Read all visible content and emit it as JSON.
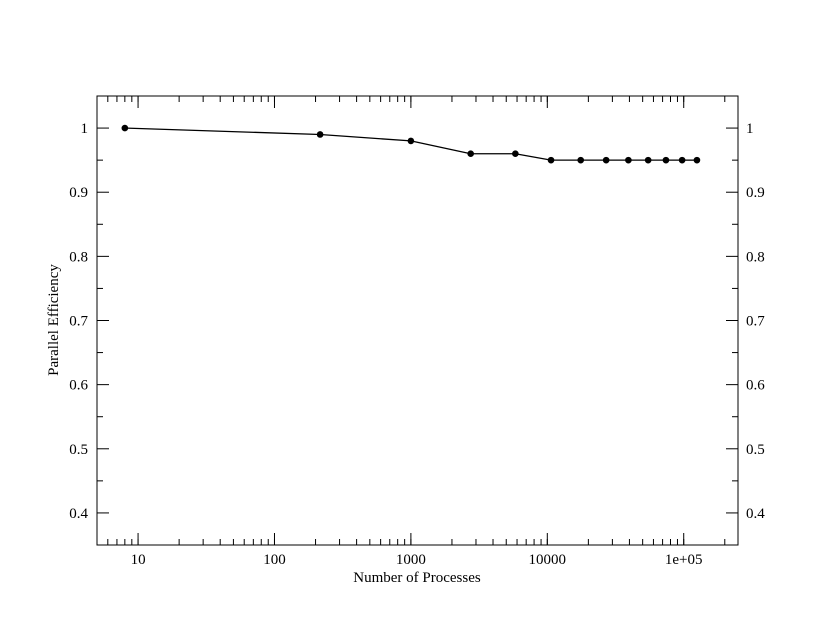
{
  "chart_data": {
    "type": "line",
    "title": "",
    "xlabel": "Number of Processes",
    "ylabel": "Parallel Efficiency",
    "xscale": "log",
    "xlim": [
      5,
      250000
    ],
    "ylim": [
      0.35,
      1.05
    ],
    "grid": false,
    "legend": "none",
    "x_ticks": [
      {
        "value": 10,
        "label": "10"
      },
      {
        "value": 100,
        "label": "100"
      },
      {
        "value": 1000,
        "label": "1000"
      },
      {
        "value": 10000,
        "label": "10000"
      },
      {
        "value": 100000,
        "label": "1e+05"
      }
    ],
    "y_ticks": [
      {
        "value": 0.4,
        "label": "0.4"
      },
      {
        "value": 0.5,
        "label": "0.5"
      },
      {
        "value": 0.6,
        "label": "0.6"
      },
      {
        "value": 0.7,
        "label": "0.7"
      },
      {
        "value": 0.8,
        "label": "0.8"
      },
      {
        "value": 0.9,
        "label": "0.9"
      },
      {
        "value": 1.0,
        "label": "1"
      }
    ],
    "series": [
      {
        "x": [
          8,
          216,
          1000,
          2744,
          5832,
          10648,
          17576,
          27000,
          39304,
          54872,
          74088,
          97336,
          125000
        ],
        "y": [
          1.0,
          0.99,
          0.98,
          0.96,
          0.96,
          0.95,
          0.95,
          0.95,
          0.95,
          0.95,
          0.95,
          0.95,
          0.95
        ],
        "color": "#000000",
        "marker": "circle"
      }
    ]
  }
}
